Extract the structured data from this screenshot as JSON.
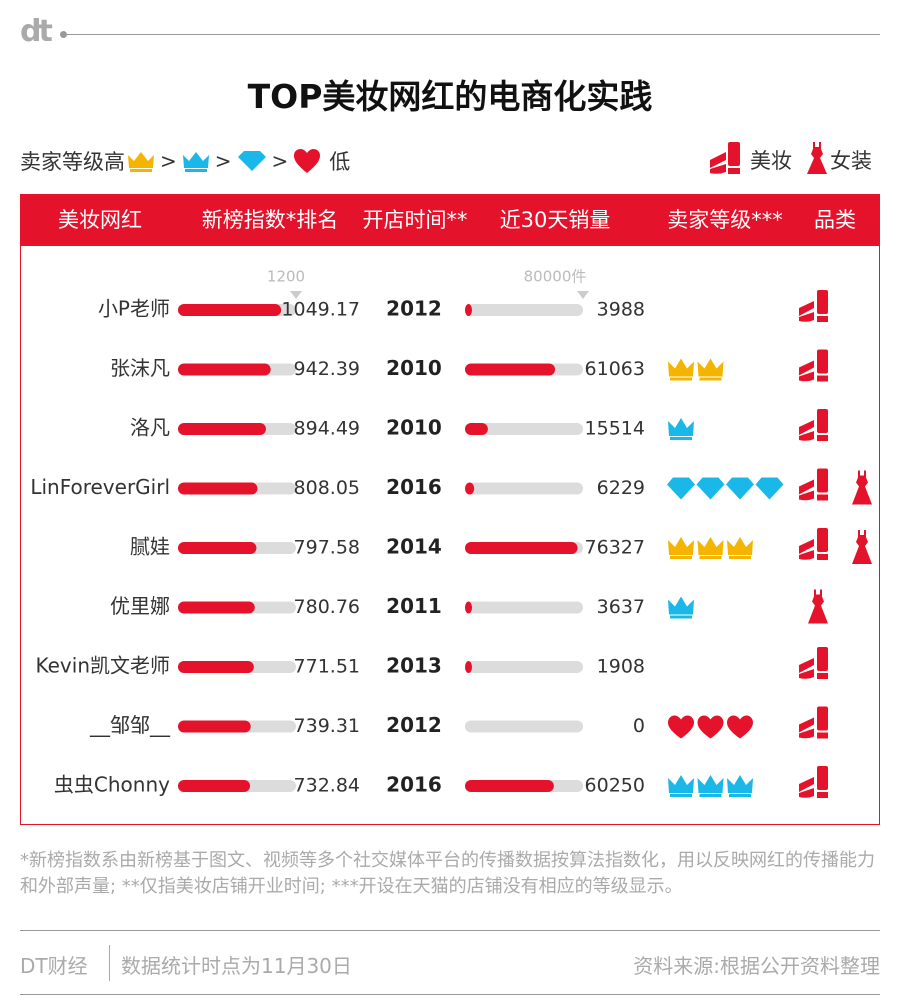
{
  "brand": {
    "logo": "dt"
  },
  "title": "TOP美妆网红的电商化实践",
  "legend": {
    "seller_label_high": "卖家等级高",
    "seller_label_low": "低",
    "gt": ">",
    "category_beauty": "美妆",
    "category_women": "女装"
  },
  "header": {
    "col_name": "美妆网红",
    "col_index": "新榜指数*排名",
    "col_open": "开店时间**",
    "col_sales": "近30天销量",
    "col_level": "卖家等级***",
    "col_category": "品类"
  },
  "colors": {
    "accent": "#e4132b",
    "bar_bg": "#dcdcdc",
    "crown_gold": "#f5b400",
    "crown_blue": "#1ab8e8",
    "diamond": "#1ab8e8",
    "heart": "#e4132b"
  },
  "chart_data": {
    "type": "table",
    "index_scale_max": 1200,
    "index_scale_label": "1200",
    "sales_scale_max": 80000,
    "sales_scale_label": "80000件",
    "rows": [
      {
        "name": "小P老师",
        "index": 1049.17,
        "index_label": "1049.17",
        "year": "2012",
        "sales": 3988,
        "sales_label": "3988",
        "level": {
          "icon": "none",
          "count": 0
        },
        "categories": [
          "beauty"
        ]
      },
      {
        "name": "张沫凡",
        "index": 942.39,
        "index_label": "942.39",
        "year": "2010",
        "sales": 61063,
        "sales_label": "61063",
        "level": {
          "icon": "gold-crown",
          "count": 2
        },
        "categories": [
          "beauty"
        ]
      },
      {
        "name": "洛凡",
        "index": 894.49,
        "index_label": "894.49",
        "year": "2010",
        "sales": 15514,
        "sales_label": "15514",
        "level": {
          "icon": "blue-crown",
          "count": 1
        },
        "categories": [
          "beauty"
        ]
      },
      {
        "name": "LinForeverGirl",
        "index": 808.05,
        "index_label": "808.05",
        "year": "2016",
        "sales": 6229,
        "sales_label": "6229",
        "level": {
          "icon": "diamond",
          "count": 4
        },
        "categories": [
          "beauty",
          "women"
        ]
      },
      {
        "name": "腻娃",
        "index": 797.58,
        "index_label": "797.58",
        "year": "2014",
        "sales": 76327,
        "sales_label": "76327",
        "level": {
          "icon": "gold-crown",
          "count": 3
        },
        "categories": [
          "beauty",
          "women"
        ]
      },
      {
        "name": "优里娜",
        "index": 780.76,
        "index_label": "780.76",
        "year": "2011",
        "sales": 3637,
        "sales_label": "3637",
        "level": {
          "icon": "blue-crown",
          "count": 1
        },
        "categories": [
          "women"
        ]
      },
      {
        "name": "Kevin凯文老师",
        "index": 771.51,
        "index_label": "771.51",
        "year": "2013",
        "sales": 1908,
        "sales_label": "1908",
        "level": {
          "icon": "none",
          "count": 0
        },
        "categories": [
          "beauty"
        ]
      },
      {
        "name": "__邹邹__",
        "index": 739.31,
        "index_label": "739.31",
        "year": "2012",
        "sales": 0,
        "sales_label": "0",
        "level": {
          "icon": "heart",
          "count": 3
        },
        "categories": [
          "beauty"
        ]
      },
      {
        "name": "虫虫Chonny",
        "index": 732.84,
        "index_label": "732.84",
        "year": "2016",
        "sales": 60250,
        "sales_label": "60250",
        "level": {
          "icon": "blue-crown",
          "count": 3
        },
        "categories": [
          "beauty"
        ]
      }
    ]
  },
  "note": "*新榜指数系由新榜基于图文、视频等多个社交媒体平台的传播数据按算法指数化，用以反映网红的传播能力和外部声量; **仅指美妆店铺开业时间; ***开设在天猫的店铺没有相应的等级显示。",
  "footer": {
    "source_brand": "DT财经",
    "time_note": "数据统计时点为11月30日",
    "data_source": "资料来源:根据公开资料整理"
  }
}
